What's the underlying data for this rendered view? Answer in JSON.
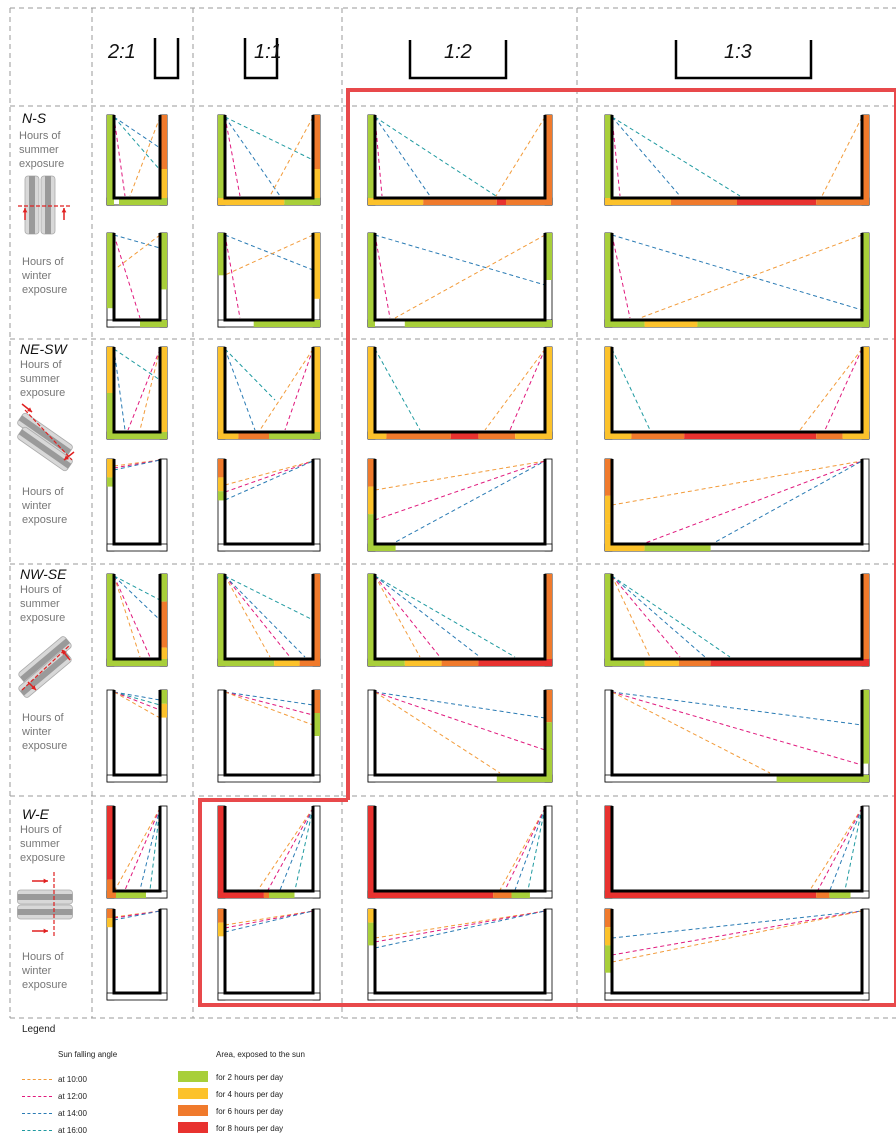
{
  "ratios": [
    "2:1",
    "1:1",
    "1:2",
    "1:3"
  ],
  "orientations": [
    {
      "name": "N-S",
      "summer": [
        "Hours of",
        "summer",
        "exposure"
      ],
      "winter": [
        "Hours of",
        "winter",
        "exposure"
      ]
    },
    {
      "name": "NE-SW",
      "summer": [
        "Hours of",
        "summer",
        "exposure"
      ],
      "winter": [
        "Hours of",
        "winter",
        "exposure"
      ]
    },
    {
      "name": "NW-SE",
      "summer": [
        "Hours of",
        "summer",
        "exposure"
      ],
      "winter": [
        "Hours of",
        "winter",
        "exposure"
      ]
    },
    {
      "name": "W-E",
      "summer": [
        "Hours of",
        "summer",
        "exposure"
      ],
      "winter": [
        "Hours of",
        "winter",
        "exposure"
      ]
    }
  ],
  "legend": {
    "title": "Legend",
    "angle_title": "Sun falling angle",
    "area_title": "Area, exposed to the sun",
    "times": [
      {
        "label": "at 10:00",
        "color": "#f29b3a"
      },
      {
        "label": "at 12:00",
        "color": "#e0197d"
      },
      {
        "label": "at 14:00",
        "color": "#2a7bb4"
      },
      {
        "label": "at 16:00",
        "color": "#1f9aa0"
      }
    ],
    "areas": [
      {
        "label": "for 2 hours per day",
        "color": "#a8cf3a"
      },
      {
        "label": "for 4 hours per day",
        "color": "#fcc22b"
      },
      {
        "label": "for 6 hours per day",
        "color": "#f07a2c"
      },
      {
        "label": "for 8 hours per day",
        "color": "#e8322f"
      }
    ]
  },
  "colors": {
    "highlight": "#e8494b",
    "grid": "#999999",
    "arrow": "#e02020"
  }
}
